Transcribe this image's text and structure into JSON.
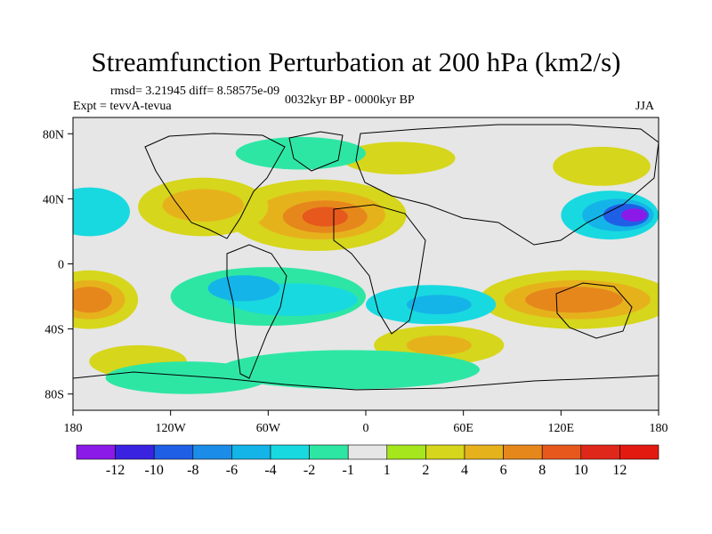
{
  "title": "Streamfunction Perturbation at 200 hPa (km2/s)",
  "stats": "rmsd= 3.21945 diff= 8.58575e-09",
  "experiment": "Expt = tevvA-tevua",
  "period": "0032kyr BP - 0000kyr BP",
  "season": "JJA",
  "axes": {
    "lat_ticks": [
      "80N",
      "40N",
      "0",
      "40S",
      "80S"
    ],
    "lon_ticks": [
      "180",
      "120W",
      "60W",
      "0",
      "60E",
      "120E",
      "180"
    ]
  },
  "colorbar": {
    "labels": [
      "-12",
      "-10",
      "-8",
      "-6",
      "-4",
      "-2",
      "-1",
      "1",
      "2",
      "4",
      "6",
      "8",
      "10",
      "12"
    ],
    "colors": [
      "#8b1ae8",
      "#3a23e0",
      "#1f5fe6",
      "#1b8de8",
      "#15b4e8",
      "#19d9e0",
      "#2ee6a4",
      "#e6e6e6",
      "#a6e61c",
      "#d6d61c",
      "#e6b21c",
      "#e6871c",
      "#e6581c",
      "#e0281a",
      "#e31a10"
    ]
  },
  "map": {
    "background_color": "#e6e6e6",
    "blobs": [
      {
        "lon": -30,
        "lat": 30,
        "rx": 55,
        "ry": 22,
        "level": 2
      },
      {
        "lon": -28,
        "lat": 30,
        "rx": 40,
        "ry": 15,
        "level": 4
      },
      {
        "lon": -25,
        "lat": 29,
        "rx": 26,
        "ry": 10,
        "level": 6
      },
      {
        "lon": -25,
        "lat": 29,
        "rx": 14,
        "ry": 6,
        "level": 8
      },
      {
        "lon": -100,
        "lat": 35,
        "rx": 40,
        "ry": 18,
        "level": 2
      },
      {
        "lon": -100,
        "lat": 36,
        "rx": 25,
        "ry": 10,
        "level": 4
      },
      {
        "lon": -170,
        "lat": -22,
        "rx": 30,
        "ry": 18,
        "level": 2
      },
      {
        "lon": -170,
        "lat": -22,
        "rx": 22,
        "ry": 12,
        "level": 4
      },
      {
        "lon": -170,
        "lat": -22,
        "rx": 14,
        "ry": 8,
        "level": 6
      },
      {
        "lon": 130,
        "lat": -22,
        "rx": 60,
        "ry": 18,
        "level": 2
      },
      {
        "lon": 130,
        "lat": -22,
        "rx": 45,
        "ry": 12,
        "level": 4
      },
      {
        "lon": 128,
        "lat": -22,
        "rx": 30,
        "ry": 8,
        "level": 6
      },
      {
        "lon": 145,
        "lat": 60,
        "rx": 30,
        "ry": 12,
        "level": 2
      },
      {
        "lon": 45,
        "lat": -50,
        "rx": 40,
        "ry": 12,
        "level": 2
      },
      {
        "lon": 45,
        "lat": -50,
        "rx": 20,
        "ry": 6,
        "level": 4
      },
      {
        "lon": 20,
        "lat": 65,
        "rx": 35,
        "ry": 10,
        "level": 2
      },
      {
        "lon": -140,
        "lat": -60,
        "rx": 30,
        "ry": 10,
        "level": 2
      },
      {
        "lon": -60,
        "lat": -20,
        "rx": 60,
        "ry": 18,
        "level": -1
      },
      {
        "lon": -45,
        "lat": -22,
        "rx": 40,
        "ry": 10,
        "level": -2
      },
      {
        "lon": -75,
        "lat": -15,
        "rx": 22,
        "ry": 8,
        "level": -4
      },
      {
        "lon": 40,
        "lat": -25,
        "rx": 40,
        "ry": 12,
        "level": -2
      },
      {
        "lon": 45,
        "lat": -25,
        "rx": 20,
        "ry": 6,
        "level": -4
      },
      {
        "lon": 150,
        "lat": 30,
        "rx": 30,
        "ry": 15,
        "level": -2
      },
      {
        "lon": 155,
        "lat": 30,
        "rx": 22,
        "ry": 10,
        "level": -4
      },
      {
        "lon": 160,
        "lat": 30,
        "rx": 14,
        "ry": 7,
        "level": -8
      },
      {
        "lon": 165,
        "lat": 30,
        "rx": 8,
        "ry": 4,
        "level": -12
      },
      {
        "lon": -170,
        "lat": 32,
        "rx": 25,
        "ry": 15,
        "level": -2
      },
      {
        "lon": -40,
        "lat": 68,
        "rx": 40,
        "ry": 10,
        "level": -1
      },
      {
        "lon": -10,
        "lat": -65,
        "rx": 80,
        "ry": 12,
        "level": -1
      },
      {
        "lon": -110,
        "lat": -70,
        "rx": 50,
        "ry": 10,
        "level": -1
      }
    ]
  }
}
